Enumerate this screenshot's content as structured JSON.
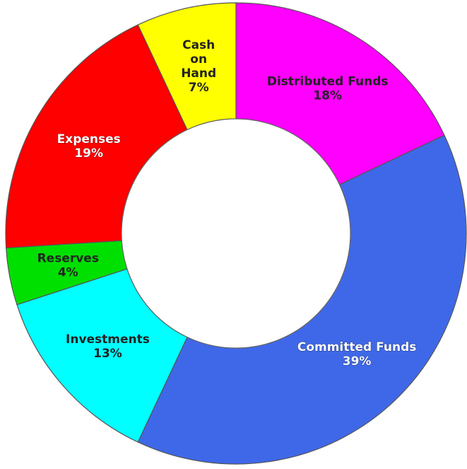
{
  "chart_data": {
    "type": "pie",
    "donut": true,
    "title": "",
    "start_angle_deg": 0,
    "direction": "clockwise",
    "categories": [
      "Distributed Funds",
      "Committed Funds",
      "Investments",
      "Reserves",
      "Expenses",
      "Cash on Hand"
    ],
    "values": [
      18,
      39,
      13,
      4,
      19,
      7
    ],
    "value_labels": [
      "18%",
      "39%",
      "13%",
      "4%",
      "19%",
      "7%"
    ],
    "label_lines": [
      [
        "Distributed Funds"
      ],
      [
        "Committed Funds"
      ],
      [
        "Investments"
      ],
      [
        "Reserves"
      ],
      [
        "Expenses"
      ],
      [
        "Cash",
        "on",
        "Hand"
      ]
    ],
    "colors": [
      "#ff00ff",
      "#3f68e8",
      "#00ffff",
      "#00e000",
      "#ff0000",
      "#ffff00"
    ],
    "label_styles": [
      "dark",
      "light",
      "dark",
      "dark",
      "light",
      "dark"
    ],
    "legend": "none",
    "grid": false
  }
}
